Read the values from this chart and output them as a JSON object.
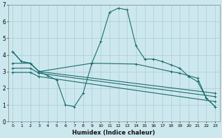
{
  "xlabel": "Humidex (Indice chaleur)",
  "bg_color": "#cce8ee",
  "grid_color": "#b0d0d8",
  "line_color": "#1a6b6b",
  "xlim": [
    -0.5,
    23.5
  ],
  "ylim": [
    0,
    7
  ],
  "xticks": [
    0,
    1,
    2,
    3,
    4,
    5,
    6,
    7,
    8,
    9,
    10,
    11,
    12,
    13,
    14,
    15,
    16,
    17,
    18,
    19,
    20,
    21,
    22,
    23
  ],
  "yticks": [
    0,
    1,
    2,
    3,
    4,
    5,
    6,
    7
  ],
  "series1_x": [
    0,
    1,
    2,
    3,
    4,
    5,
    6,
    7,
    8,
    9,
    10,
    11,
    12,
    13,
    14,
    15,
    16,
    17,
    18,
    19,
    20,
    21,
    22,
    23
  ],
  "series1_y": [
    4.2,
    3.6,
    3.5,
    3.0,
    2.75,
    2.5,
    1.0,
    0.9,
    1.7,
    3.5,
    4.8,
    6.55,
    6.8,
    6.7,
    4.55,
    3.75,
    3.75,
    3.6,
    3.4,
    3.2,
    2.7,
    2.4,
    1.4,
    0.9
  ],
  "series2_x": [
    0,
    1,
    2,
    3,
    9,
    14,
    18,
    19,
    20,
    21,
    22,
    23
  ],
  "series2_y": [
    4.2,
    3.6,
    3.5,
    3.0,
    3.5,
    3.45,
    3.0,
    2.9,
    2.75,
    2.6,
    1.4,
    0.9
  ],
  "series3_x": [
    0,
    2,
    3,
    23
  ],
  "series3_y": [
    3.5,
    3.5,
    3.0,
    1.7
  ],
  "series4_x": [
    0,
    2,
    3,
    23
  ],
  "series4_y": [
    3.2,
    3.2,
    2.9,
    1.5
  ],
  "series5_x": [
    0,
    2,
    3,
    23
  ],
  "series5_y": [
    2.95,
    2.95,
    2.7,
    1.2
  ]
}
